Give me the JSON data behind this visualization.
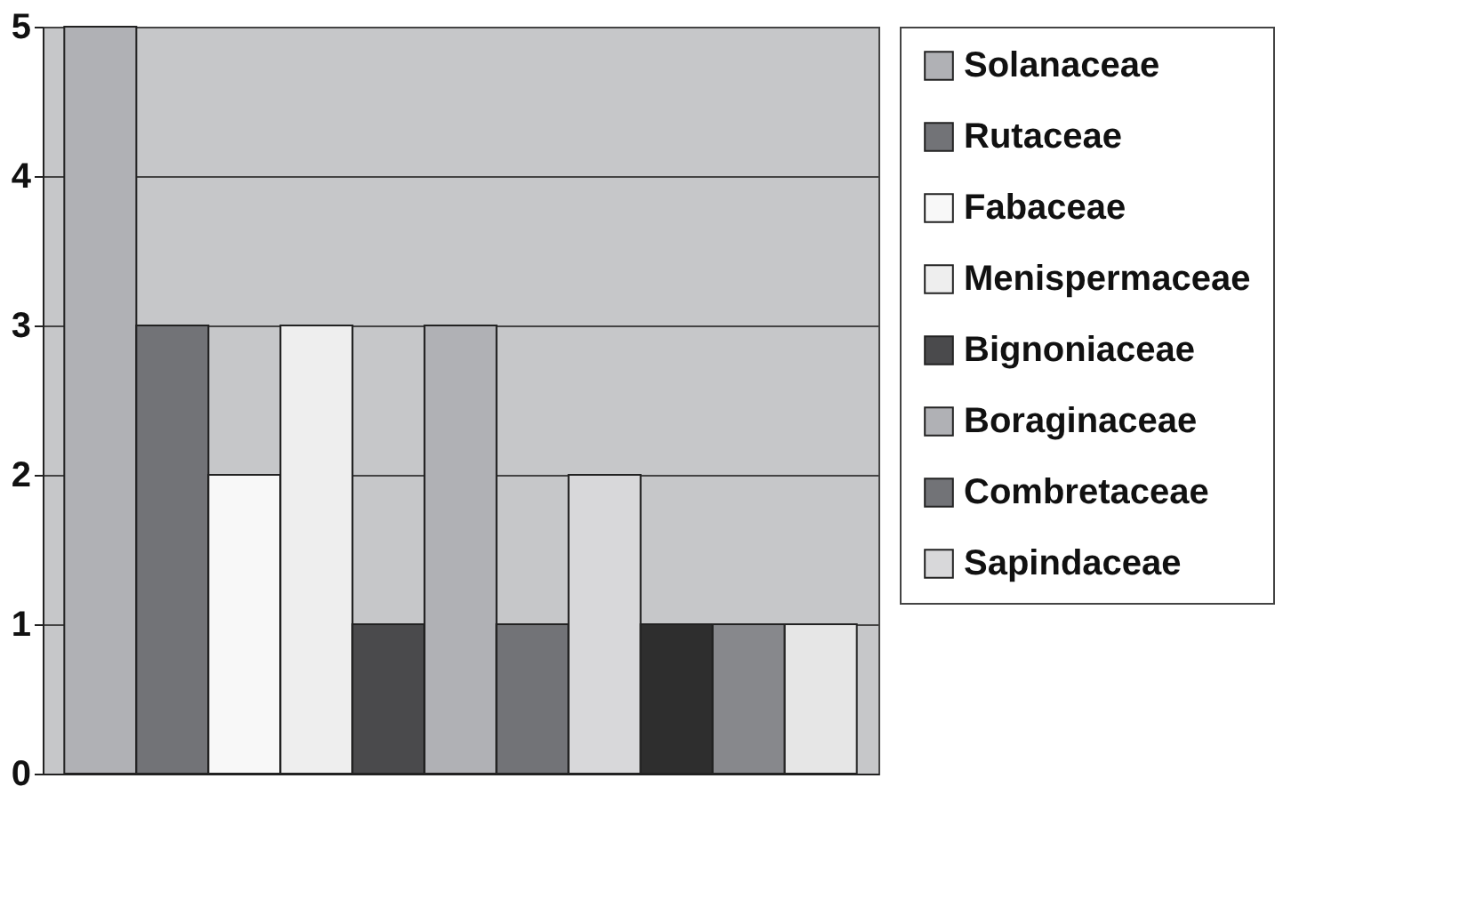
{
  "chart_data": {
    "type": "bar",
    "categories": [
      null
    ],
    "series": [
      {
        "name": "Solanaceae",
        "color": "#b0b1b5",
        "values": [
          5
        ]
      },
      {
        "name": "Rutaceae",
        "color": "#727377",
        "values": [
          3
        ]
      },
      {
        "name": "Fabaceae",
        "color": "#f8f8f8",
        "values": [
          2
        ]
      },
      {
        "name": "Menispermaceae",
        "color": "#eeeeee",
        "values": [
          3
        ]
      },
      {
        "name": "Bignoniaceae",
        "color": "#4a4a4c",
        "values": [
          1
        ]
      },
      {
        "name": "Boraginaceae",
        "color": "#b0b1b5",
        "values": [
          3
        ]
      },
      {
        "name": "Combretaceae",
        "color": "#727377",
        "values": [
          1
        ]
      },
      {
        "name": "Sapindaceae",
        "color": "#d8d8da",
        "values": [
          2
        ]
      },
      {
        "color": "#2e2e2e",
        "values": [
          1
        ]
      },
      {
        "color": "#87888c",
        "values": [
          1
        ]
      },
      {
        "color": "#e6e6e6",
        "values": [
          1
        ]
      }
    ],
    "ylim": [
      0,
      5
    ],
    "yticks": [
      0,
      1,
      2,
      3,
      4,
      5
    ],
    "grid": "y",
    "legend": "right"
  }
}
